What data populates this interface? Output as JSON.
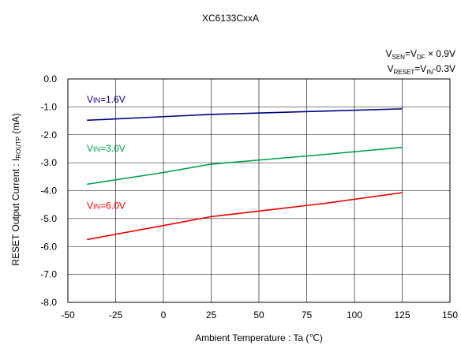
{
  "chart_data": {
    "type": "line",
    "title": "XC6133CxxA",
    "conditions": [
      {
        "main": "V",
        "sub": "SEN",
        "eq1": "=V",
        "sub2": "DF",
        "rest": " × 0.9V"
      },
      {
        "main": "V",
        "sub": "RESET",
        "eq1": "=V",
        "sub2": "IN",
        "rest": "-0.3V"
      }
    ],
    "xlabel": "Ambient Temperature : Ta (℃)",
    "ylabel_main": "RESET Output Current : I",
    "ylabel_sub": "ROUTP",
    "ylabel_unit": " (mA)",
    "xlim": [
      -50,
      150
    ],
    "ylim": [
      -8.0,
      0.0
    ],
    "xticks": [
      "-50",
      "-25",
      "0",
      "25",
      "50",
      "75",
      "100",
      "125",
      "150"
    ],
    "yticks": [
      "0.0",
      "-1.0",
      "-2.0",
      "-3.0",
      "-4.0",
      "-5.0",
      "-6.0",
      "-7.0",
      "-8.0"
    ],
    "grid": true,
    "series": [
      {
        "name": "VIN=1.6V",
        "label_main": "V",
        "label_sub": "IN",
        "label_rest": "=1.6V",
        "color": "#000080",
        "x": [
          -40,
          0,
          25,
          85,
          125
        ],
        "y": [
          -1.48,
          -1.35,
          -1.27,
          -1.15,
          -1.07
        ]
      },
      {
        "name": "VIN=3.0V",
        "label_main": "V",
        "label_sub": "IN",
        "label_rest": "=3.0V",
        "color": "#00a050",
        "x": [
          -40,
          0,
          25,
          85,
          125
        ],
        "y": [
          -3.77,
          -3.35,
          -3.05,
          -2.7,
          -2.45
        ]
      },
      {
        "name": "VIN=6.0V",
        "label_main": "V",
        "label_sub": "IN",
        "label_rest": "=6.0V",
        "color": "#ee0000",
        "x": [
          -40,
          0,
          25,
          85,
          125
        ],
        "y": [
          -5.75,
          -5.25,
          -4.93,
          -4.45,
          -4.07
        ]
      }
    ]
  }
}
